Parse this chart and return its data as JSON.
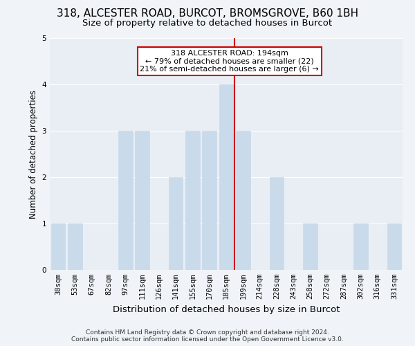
{
  "title": "318, ALCESTER ROAD, BURCOT, BROMSGROVE, B60 1BH",
  "subtitle": "Size of property relative to detached houses in Burcot",
  "xlabel": "Distribution of detached houses by size in Burcot",
  "ylabel": "Number of detached properties",
  "categories": [
    "38sqm",
    "53sqm",
    "67sqm",
    "82sqm",
    "97sqm",
    "111sqm",
    "126sqm",
    "141sqm",
    "155sqm",
    "170sqm",
    "185sqm",
    "199sqm",
    "214sqm",
    "228sqm",
    "243sqm",
    "258sqm",
    "272sqm",
    "287sqm",
    "302sqm",
    "316sqm",
    "331sqm"
  ],
  "values": [
    1,
    1,
    0,
    0,
    3,
    3,
    0,
    2,
    3,
    3,
    4,
    3,
    0,
    2,
    0,
    1,
    0,
    0,
    1,
    0,
    1
  ],
  "bar_color": "#c9daea",
  "bar_edgecolor": "#c9daea",
  "property_line_x": 10.5,
  "annotation_text": "318 ALCESTER ROAD: 194sqm\n← 79% of detached houses are smaller (22)\n21% of semi-detached houses are larger (6) →",
  "annotation_box_color": "#cc0000",
  "ylim": [
    0,
    5
  ],
  "yticks": [
    0,
    1,
    2,
    3,
    4,
    5
  ],
  "background_color": "#f0f4f8",
  "footer": "Contains HM Land Registry data © Crown copyright and database right 2024.\nContains public sector information licensed under the Open Government Licence v3.0.",
  "title_fontsize": 11,
  "subtitle_fontsize": 9.5,
  "xlabel_fontsize": 9.5,
  "ylabel_fontsize": 8.5,
  "tick_fontsize": 7.5,
  "footer_fontsize": 6.5,
  "annotation_fontsize": 8,
  "grid_color": "#ffffff",
  "axes_facecolor": "#e8eef4"
}
